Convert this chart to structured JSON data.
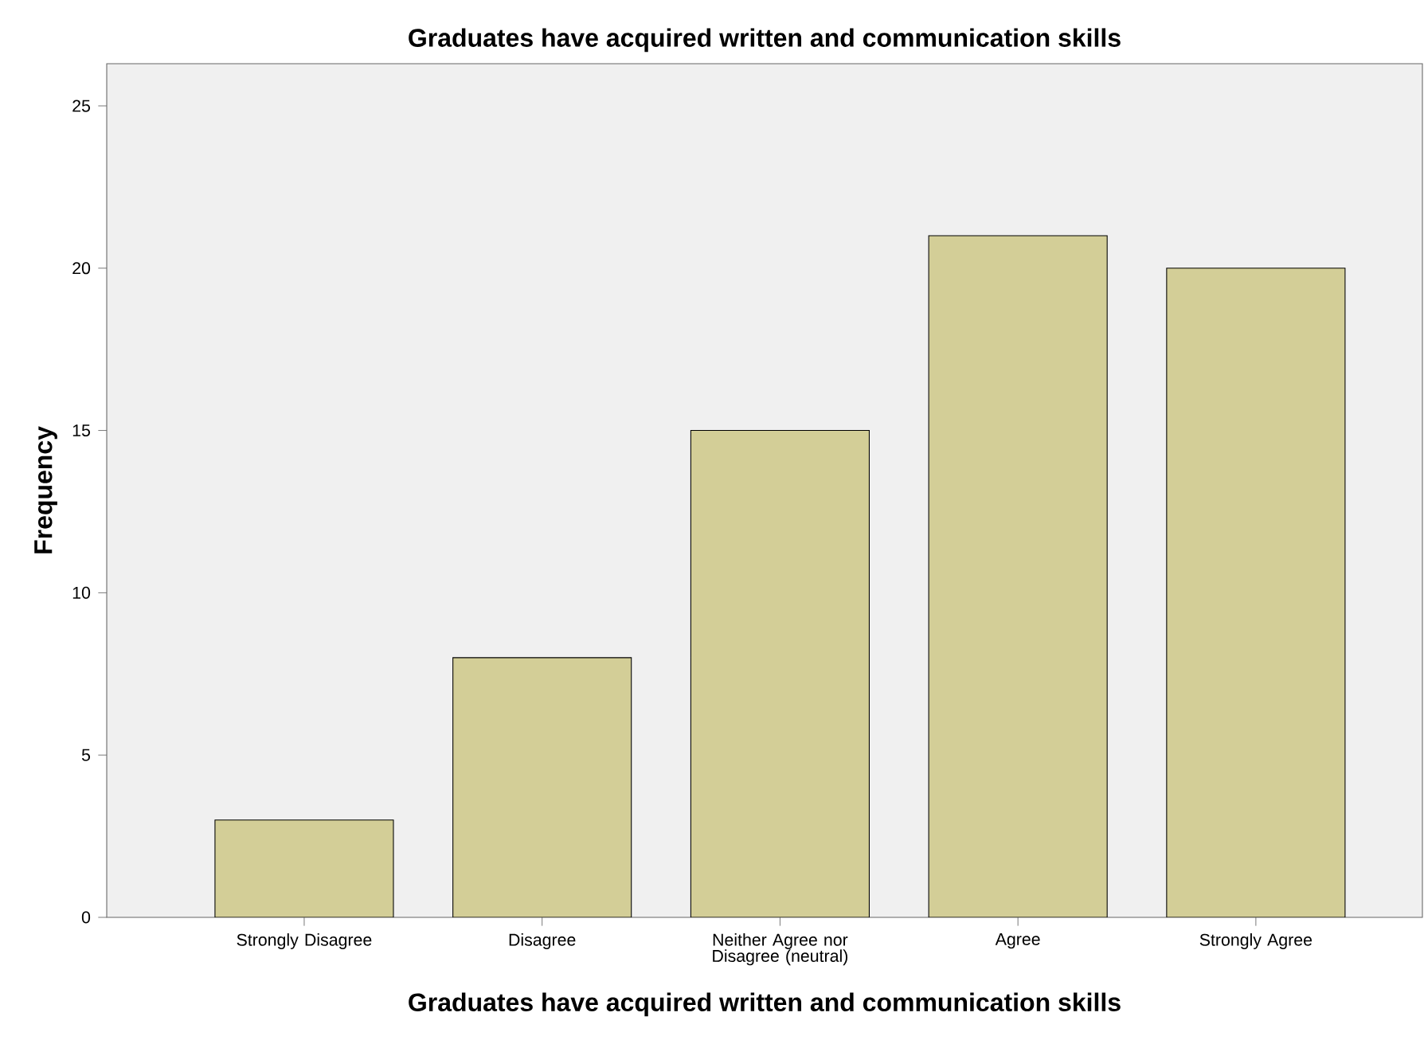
{
  "chart_data": {
    "type": "bar",
    "title": "Graduates have acquired written and communication skills",
    "xlabel": "Graduates have acquired written and communication skills",
    "ylabel": "Frequency",
    "categories": [
      "Strongly Disagree",
      "Disagree",
      "Neither Agree nor Disagree (neutral)",
      "Agree",
      "Strongly Agree"
    ],
    "values": [
      3,
      8,
      15,
      21,
      20
    ],
    "color": "#d3ce97",
    "ylim": [
      0,
      26.3
    ],
    "yticks": [
      0,
      5,
      10,
      15,
      20,
      25
    ],
    "grid": false
  }
}
